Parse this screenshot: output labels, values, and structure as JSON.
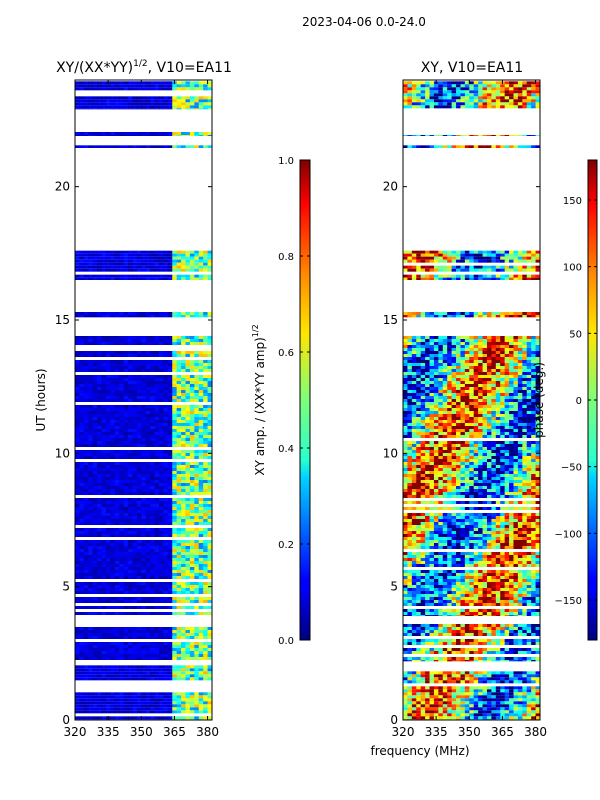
{
  "figure_title": "2023-04-06 0.0-24.0",
  "shared_xlabel": "frequency (MHz)",
  "chart_data": [
    {
      "type": "heatmap",
      "title_main": "XY/(XX*YY)",
      "title_sup": "1/2",
      "title_tail": ", V10=EA11",
      "ylabel": "UT (hours)",
      "xlim": [
        320,
        382
      ],
      "ylim": [
        0,
        24
      ],
      "x_ticks": [
        "320",
        "335",
        "350",
        "365",
        "380"
      ],
      "x_tick_values": [
        320,
        335,
        350,
        365,
        380
      ],
      "y_ticks": [
        "0",
        "5",
        "10",
        "15",
        "20"
      ],
      "y_tick_values": [
        0,
        5,
        10,
        15,
        20
      ],
      "colorbar": {
        "label_main": "XY amp. / (XX*YY amp)",
        "label_sup": "1/2",
        "range": [
          0.0,
          1.0
        ],
        "ticks": [
          "0.0",
          "0.2",
          "0.4",
          "0.6",
          "0.8",
          "1.0"
        ],
        "tick_values": [
          0.0,
          0.2,
          0.4,
          0.6,
          0.8,
          1.0
        ],
        "colormap": "jet"
      },
      "data_blocks_ut_hours": [
        [
          0,
          2.05
        ],
        [
          2.2,
          3.6
        ],
        [
          3.9,
          14.4
        ],
        [
          15.1,
          15.3
        ],
        [
          16.5,
          17.6
        ],
        [
          21.45,
          21.55
        ],
        [
          21.9,
          22.05
        ],
        [
          22.9,
          23.95
        ]
      ]
    },
    {
      "type": "heatmap",
      "title": "XY, V10=EA11",
      "xlim": [
        320,
        382
      ],
      "ylim": [
        0,
        24
      ],
      "x_ticks": [
        "320",
        "335",
        "350",
        "365",
        "380"
      ],
      "x_tick_values": [
        320,
        335,
        350,
        365,
        380
      ],
      "y_ticks": [
        "0",
        "5",
        "10",
        "15",
        "20"
      ],
      "y_tick_values": [
        0,
        5,
        10,
        15,
        20
      ],
      "colorbar": {
        "label": "phase (deg.)",
        "range": [
          -180,
          180
        ],
        "ticks": [
          "−150",
          "−100",
          "−50",
          "0",
          "50",
          "100",
          "150"
        ],
        "tick_values": [
          -150,
          -100,
          -50,
          0,
          50,
          100,
          150
        ],
        "colormap": "jet"
      },
      "data_blocks_ut_hours": [
        [
          0,
          2.05
        ],
        [
          2.2,
          3.6
        ],
        [
          3.9,
          14.4
        ],
        [
          15.1,
          15.3
        ],
        [
          16.5,
          17.6
        ],
        [
          21.45,
          21.55
        ],
        [
          21.9,
          22.05
        ],
        [
          22.9,
          23.95
        ]
      ]
    }
  ]
}
